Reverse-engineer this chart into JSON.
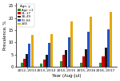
{
  "title": "",
  "xlabel": "Year (Aug–Jul)",
  "ylabel": "Prevalence, %",
  "years": [
    "2012–2013",
    "2013–2014",
    "2014–2015",
    "2015–2016",
    "2016–2017"
  ],
  "legend_labels": [
    "Age <1",
    "01–17",
    "18–49",
    "50–64",
    "≥65"
  ],
  "colors": [
    "#2e8b2e",
    "#cc0000",
    "#1a1a1a",
    "#2255cc",
    "#e6a800"
  ],
  "group_keys": [
    "Age <1",
    "01-17",
    "18-49",
    "50-64",
    "65+"
  ],
  "data": {
    "Age <1": [
      1.8,
      1.5,
      2.2,
      1.8,
      1.8
    ],
    "01-17": [
      3.2,
      3.0,
      4.8,
      4.2,
      4.2
    ],
    "18-49": [
      5.2,
      5.0,
      6.8,
      7.2,
      7.8
    ],
    "50-64": [
      9.5,
      9.8,
      12.0,
      14.5,
      15.5
    ],
    "65+": [
      13.2,
      13.5,
      18.5,
      20.5,
      22.5
    ]
  },
  "ylim": [
    0,
    26
  ],
  "yticks": [
    0,
    5,
    10,
    15,
    20,
    25
  ],
  "bar_width": 0.13,
  "background_color": "#ffffff"
}
